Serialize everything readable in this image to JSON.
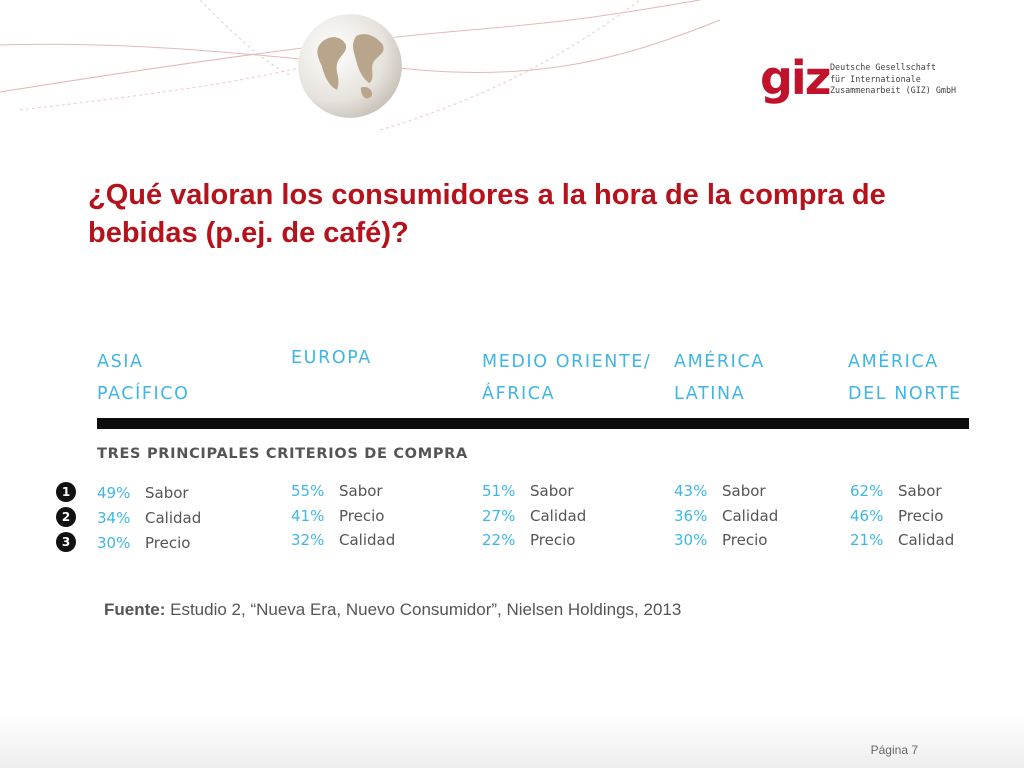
{
  "header": {
    "logo_word": "giz",
    "org_lines": [
      "Deutsche Gesellschaft",
      "für Internationale",
      "Zusammenarbeit (GIZ) GmbH"
    ]
  },
  "slide": {
    "title": "¿Qué valoran los consumidores a la hora de la compra de bebidas (p.ej. de café)?"
  },
  "table": {
    "regions": [
      {
        "line1": "ASIA",
        "line2": "PACÍFICO"
      },
      {
        "line1": "",
        "line2": "EUROPA"
      },
      {
        "line1": "MEDIO ORIENTE/",
        "line2": "ÁFRICA"
      },
      {
        "line1": "AMÉRICA",
        "line2": "LATINA"
      },
      {
        "line1": "AMÉRICA",
        "line2": "DEL NORTE"
      }
    ],
    "heading": "TRES PRINCIPALES CRITERIOS DE COMPRA",
    "ranks": [
      "1",
      "2",
      "3"
    ],
    "rows": [
      [
        {
          "pct": "49%",
          "criterion": "Sabor"
        },
        {
          "pct": "34%",
          "criterion": "Calidad"
        },
        {
          "pct": "30%",
          "criterion": "Precio"
        }
      ],
      [
        {
          "pct": "55%",
          "criterion": "Sabor"
        },
        {
          "pct": "41%",
          "criterion": "Precio"
        },
        {
          "pct": "32%",
          "criterion": "Calidad"
        }
      ],
      [
        {
          "pct": "51%",
          "criterion": "Sabor"
        },
        {
          "pct": "27%",
          "criterion": "Calidad"
        },
        {
          "pct": "22%",
          "criterion": "Precio"
        }
      ],
      [
        {
          "pct": "43%",
          "criterion": "Sabor"
        },
        {
          "pct": "36%",
          "criterion": "Calidad"
        },
        {
          "pct": "30%",
          "criterion": "Precio"
        }
      ],
      [
        {
          "pct": "62%",
          "criterion": "Sabor"
        },
        {
          "pct": "46%",
          "criterion": "Precio"
        },
        {
          "pct": "21%",
          "criterion": "Calidad"
        }
      ]
    ]
  },
  "source": {
    "label": "Fuente:",
    "text": " Estudio 2, “Nueva Era, Nuevo Consumidor”, Nielsen Holdings, 2013"
  },
  "footer": {
    "page_label": "Página 7"
  },
  "colors": {
    "title": "#b5121b",
    "accent_blue": "#3fb6e5",
    "logo_red": "#c0122b",
    "text_gray": "#555555"
  }
}
